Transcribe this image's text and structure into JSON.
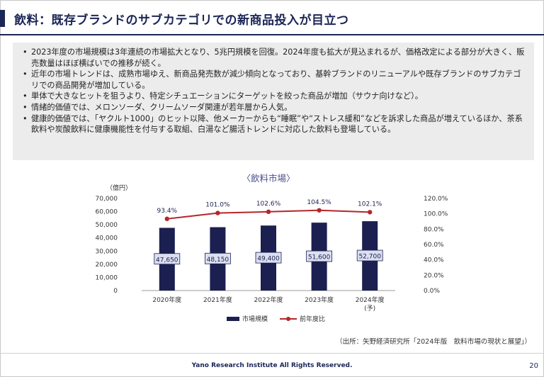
{
  "header": {
    "title": "飲料：既存ブランドのサブカテゴリでの新商品投入が目立つ"
  },
  "bullets": [
    "2023年度の市場規模は3年連続の市場拡大となり、5兆円規模を回復。2024年度も拡大が見込まれるが、価格改定による部分が大きく、販売数量はほぼ横ばいでの推移が続く。",
    "近年の市場トレンドは、成熟市場ゆえ、新商品発売数が減少傾向となっており、基幹ブランドのリニューアルや既存ブランドのサブカテゴリでの商品開発が増加している。",
    "単体で大きなヒットを狙うより、特定シチュエーションにターゲットを絞った商品が増加（サウナ向けなど）。",
    "情緒的価値では、メロンソーダ、クリームソーダ関連が若年層から人気。",
    "健康的価値では、「ヤクルト1000」のヒット以降、他メーカーからも“睡眠”や“ストレス緩和”などを訴求した商品が増えているほか、茶系飲料や炭酸飲料に健康機能性を付与する取組、白湯など腸活トレンドに対応した飲料も登場している。"
  ],
  "bullet_marker": "•",
  "chart_data": {
    "type": "bar",
    "title": "〈飲料市場〉",
    "ylabel": "（億円）",
    "categories": [
      "2020年度",
      "2021年度",
      "2022年度",
      "2023年度",
      "2024年度"
    ],
    "category_sublabels": [
      "",
      "",
      "",
      "",
      "(予)"
    ],
    "series": [
      {
        "name": "市場規模",
        "type": "bar",
        "axis": "left",
        "values": [
          47650,
          48150,
          49400,
          51600,
          52700
        ],
        "labels": [
          "47,650",
          "48,150",
          "49,400",
          "51,600",
          "52,700"
        ],
        "color": "#1b2050"
      },
      {
        "name": "前年度比",
        "type": "line",
        "axis": "right",
        "values": [
          93.4,
          101.0,
          102.6,
          104.5,
          102.1
        ],
        "labels": [
          "93.4%",
          "101.0%",
          "102.6%",
          "104.5%",
          "102.1%"
        ],
        "color": "#b5262b"
      }
    ],
    "ylim": [
      0,
      70000
    ],
    "yticks": [
      "0",
      "10,000",
      "20,000",
      "30,000",
      "40,000",
      "50,000",
      "60,000",
      "70,000"
    ],
    "y2lim": [
      0,
      120
    ],
    "y2ticks": [
      "0.0%",
      "20.0%",
      "40.0%",
      "60.0%",
      "80.0%",
      "100.0%",
      "120.0%"
    ],
    "legend_position": "bottom",
    "grid": false
  },
  "source": "（出所：矢野経済研究所「2024年版　飲料市場の現状と展望」）",
  "footer": {
    "copyright": "Yano Research Institute All Rights Reserved.",
    "page": "20"
  }
}
